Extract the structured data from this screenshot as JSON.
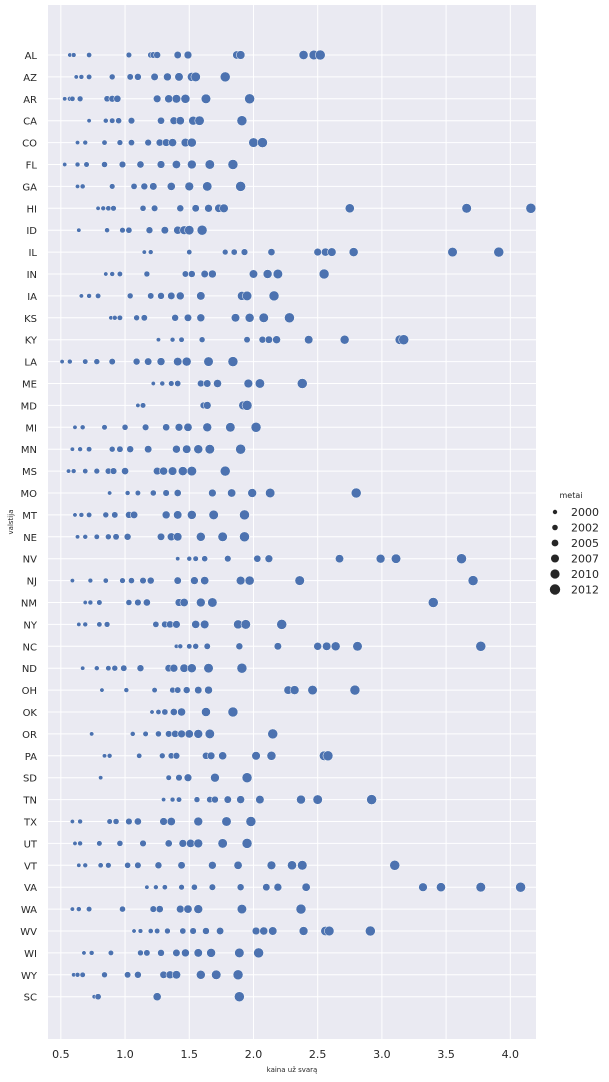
{
  "chart_data": {
    "type": "scatter",
    "xlabel": "kaina už svarą",
    "ylabel": "valstija",
    "xlim": [
      0.4,
      4.2
    ],
    "x_ticks": [
      "0.5",
      "1.0",
      "1.5",
      "2.0",
      "2.5",
      "3.0",
      "3.5",
      "4.0"
    ],
    "x_tick_values": [
      0.5,
      1.0,
      1.5,
      2.0,
      2.5,
      3.0,
      3.5,
      4.0
    ],
    "categories": [
      "AL",
      "AZ",
      "AR",
      "CA",
      "CO",
      "FL",
      "GA",
      "HI",
      "ID",
      "IL",
      "IN",
      "IA",
      "KS",
      "KY",
      "LA",
      "ME",
      "MD",
      "MI",
      "MN",
      "MS",
      "MO",
      "MT",
      "NE",
      "NV",
      "NJ",
      "NM",
      "NY",
      "NC",
      "ND",
      "OH",
      "OK",
      "OR",
      "PA",
      "SD",
      "TN",
      "TX",
      "UT",
      "VT",
      "VA",
      "WA",
      "WV",
      "WI",
      "WY",
      "SC"
    ],
    "grid": true,
    "background": "#eaeaf2",
    "marker_color": "#4c72b0",
    "legend": {
      "title": "metai",
      "placement": "right",
      "entries": [
        "2000",
        "2002",
        "2005",
        "2007",
        "2010",
        "2012"
      ]
    },
    "points": {
      "AL": [
        0.57,
        0.6,
        0.72,
        1.03,
        1.2,
        1.22,
        1.25,
        1.41,
        1.49,
        1.87,
        1.9,
        2.39,
        2.47,
        2.52
      ],
      "AZ": [
        0.62,
        0.66,
        0.72,
        0.9,
        1.04,
        1.1,
        1.23,
        1.33,
        1.42,
        1.52,
        1.55,
        1.78
      ],
      "AR": [
        0.53,
        0.57,
        0.59,
        0.65,
        0.86,
        0.9,
        0.94,
        1.25,
        1.34,
        1.4,
        1.47,
        1.63,
        1.97
      ],
      "CA": [
        0.72,
        0.85,
        0.9,
        0.95,
        1.05,
        1.28,
        1.38,
        1.43,
        1.53,
        1.58,
        1.91
      ],
      "CO": [
        0.63,
        0.69,
        0.84,
        0.96,
        1.05,
        1.18,
        1.27,
        1.32,
        1.37,
        1.47,
        1.52,
        2.0,
        2.07
      ],
      "FL": [
        0.53,
        0.63,
        0.7,
        0.84,
        0.98,
        1.12,
        1.28,
        1.4,
        1.52,
        1.66,
        1.84
      ],
      "GA": [
        0.63,
        0.67,
        0.9,
        1.07,
        1.15,
        1.22,
        1.36,
        1.5,
        1.64,
        1.9
      ],
      "HI": [
        0.79,
        0.83,
        0.87,
        0.91,
        1.14,
        1.23,
        1.43,
        1.55,
        1.65,
        1.73,
        1.77,
        2.75,
        3.66,
        4.16
      ],
      "ID": [
        0.64,
        0.86,
        0.98,
        1.03,
        1.19,
        1.31,
        1.41,
        1.46,
        1.5,
        1.6
      ],
      "IL": [
        1.15,
        1.2,
        1.5,
        1.78,
        1.85,
        1.93,
        2.14,
        2.5,
        2.56,
        2.61,
        2.78,
        3.55,
        3.91
      ],
      "IN": [
        0.85,
        0.9,
        0.96,
        1.17,
        1.47,
        1.52,
        1.62,
        1.68,
        2.0,
        2.11,
        2.19,
        2.55
      ],
      "IA": [
        0.66,
        0.72,
        0.79,
        1.04,
        1.2,
        1.28,
        1.36,
        1.43,
        1.59,
        1.91,
        1.95,
        2.16
      ],
      "KS": [
        0.89,
        0.92,
        0.96,
        1.09,
        1.15,
        1.39,
        1.49,
        1.59,
        1.86,
        1.97,
        2.08,
        2.28
      ],
      "KY": [
        1.26,
        1.37,
        1.44,
        1.6,
        1.95,
        2.07,
        2.12,
        2.18,
        2.43,
        2.71,
        3.14,
        3.17
      ],
      "LA": [
        0.51,
        0.57,
        0.69,
        0.78,
        0.9,
        1.09,
        1.18,
        1.28,
        1.41,
        1.48,
        1.65,
        1.84
      ],
      "ME": [
        1.22,
        1.29,
        1.36,
        1.41,
        1.59,
        1.64,
        1.72,
        1.96,
        2.05,
        2.38
      ],
      "MD": [
        1.1,
        1.14,
        1.61,
        1.64,
        1.92,
        1.95
      ],
      "MI": [
        0.61,
        0.67,
        0.84,
        1.0,
        1.16,
        1.32,
        1.42,
        1.49,
        1.64,
        1.82,
        2.02
      ],
      "MN": [
        0.59,
        0.65,
        0.72,
        0.9,
        0.96,
        1.04,
        1.18,
        1.4,
        1.48,
        1.57,
        1.66,
        1.9
      ],
      "MS": [
        0.56,
        0.6,
        0.69,
        0.78,
        0.87,
        0.91,
        1.0,
        1.25,
        1.3,
        1.37,
        1.45,
        1.52,
        1.78
      ],
      "MO": [
        0.88,
        1.02,
        1.1,
        1.22,
        1.32,
        1.41,
        1.68,
        1.83,
        1.99,
        2.13,
        2.8
      ],
      "MT": [
        0.61,
        0.66,
        0.72,
        0.85,
        0.92,
        1.03,
        1.07,
        1.32,
        1.41,
        1.52,
        1.69,
        1.93
      ],
      "NE": [
        0.63,
        0.69,
        0.78,
        0.87,
        0.93,
        1.02,
        1.28,
        1.36,
        1.41,
        1.59,
        1.76,
        1.93
      ],
      "NV": [
        1.41,
        1.5,
        1.55,
        1.62,
        1.8,
        2.03,
        2.12,
        2.67,
        2.99,
        3.11,
        3.62
      ],
      "NJ": [
        0.59,
        0.73,
        0.85,
        0.98,
        1.05,
        1.14,
        1.2,
        1.41,
        1.54,
        1.62,
        1.9,
        1.97,
        2.36,
        3.71
      ],
      "NM": [
        0.69,
        0.73,
        0.8,
        1.03,
        1.1,
        1.17,
        1.42,
        1.46,
        1.59,
        1.68,
        3.4
      ],
      "NY": [
        0.64,
        0.69,
        0.8,
        0.86,
        1.24,
        1.31,
        1.35,
        1.4,
        1.55,
        1.62,
        1.88,
        1.94,
        2.22
      ],
      "NC": [
        1.4,
        1.43,
        1.5,
        1.55,
        1.64,
        1.89,
        2.19,
        2.5,
        2.57,
        2.64,
        2.81,
        3.77
      ],
      "ND": [
        0.67,
        0.78,
        0.87,
        0.92,
        0.99,
        1.12,
        1.34,
        1.38,
        1.46,
        1.52,
        1.65,
        1.91
      ],
      "OH": [
        0.82,
        1.01,
        1.23,
        1.37,
        1.41,
        1.48,
        1.57,
        1.65,
        2.27,
        2.32,
        2.46,
        2.79
      ],
      "OK": [
        1.21,
        1.26,
        1.31,
        1.38,
        1.44,
        1.63,
        1.84
      ],
      "OR": [
        0.74,
        1.06,
        1.16,
        1.26,
        1.34,
        1.39,
        1.44,
        1.5,
        1.57,
        1.66,
        2.15
      ],
      "PA": [
        0.84,
        0.88,
        1.11,
        1.29,
        1.36,
        1.4,
        1.63,
        1.67,
        1.76,
        2.02,
        2.14,
        2.55,
        2.58
      ],
      "SD": [
        0.81,
        1.34,
        1.42,
        1.49,
        1.7,
        1.95
      ],
      "TN": [
        1.3,
        1.37,
        1.42,
        1.56,
        1.66,
        1.7,
        1.8,
        1.9,
        2.05,
        2.37,
        2.5,
        2.92
      ],
      "TX": [
        0.59,
        0.65,
        0.88,
        0.93,
        1.03,
        1.1,
        1.3,
        1.36,
        1.57,
        1.79,
        1.98
      ],
      "UT": [
        0.61,
        0.65,
        0.8,
        0.96,
        1.14,
        1.34,
        1.45,
        1.51,
        1.57,
        1.76,
        1.95
      ],
      "VT": [
        0.64,
        0.69,
        0.81,
        0.87,
        1.02,
        1.1,
        1.26,
        1.44,
        1.68,
        1.88,
        2.14,
        2.3,
        2.38,
        3.1
      ],
      "VA": [
        1.17,
        1.24,
        1.31,
        1.44,
        1.54,
        1.68,
        1.9,
        2.1,
        2.19,
        2.41,
        3.32,
        3.46,
        3.77,
        4.08
      ],
      "WA": [
        0.59,
        0.64,
        0.72,
        0.98,
        1.22,
        1.27,
        1.43,
        1.49,
        1.57,
        1.91,
        2.37
      ],
      "WV": [
        1.07,
        1.12,
        1.2,
        1.25,
        1.33,
        1.45,
        1.53,
        1.63,
        1.74,
        2.02,
        2.08,
        2.15,
        2.39,
        2.56,
        2.59,
        2.91
      ],
      "WI": [
        0.68,
        0.74,
        0.89,
        1.12,
        1.17,
        1.28,
        1.4,
        1.47,
        1.57,
        1.67,
        1.89,
        2.04
      ],
      "WY": [
        0.6,
        0.63,
        0.67,
        0.84,
        1.02,
        1.1,
        1.3,
        1.35,
        1.4,
        1.59,
        1.71,
        1.88
      ],
      "SC": [
        0.76,
        0.79,
        1.25,
        1.89
      ]
    }
  }
}
